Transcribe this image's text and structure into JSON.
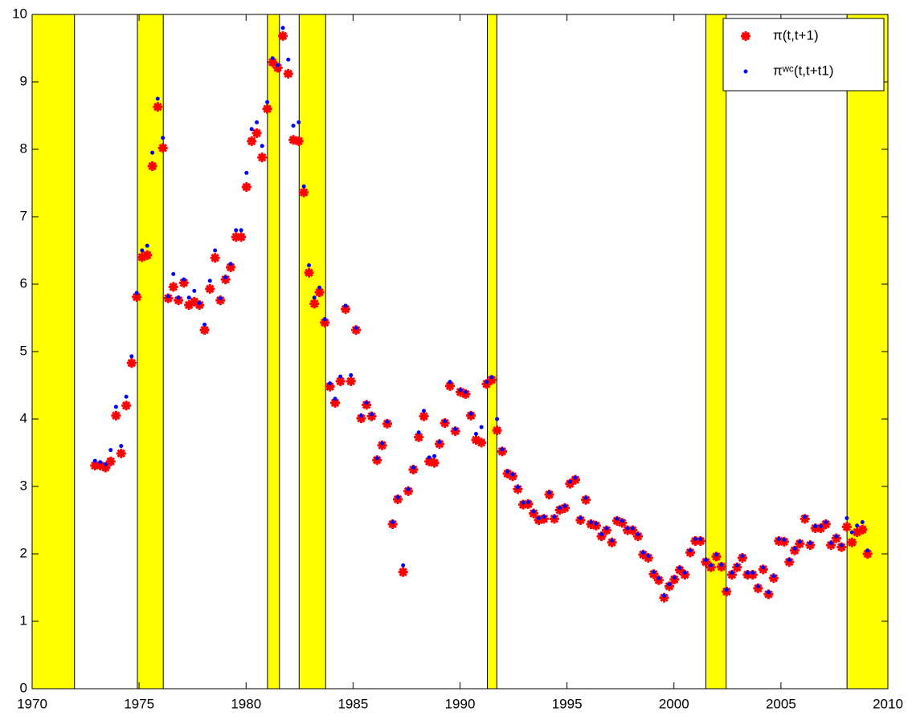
{
  "chart_data": {
    "type": "scatter",
    "xlim": [
      1970,
      2010
    ],
    "ylim": [
      0,
      10
    ],
    "xticks": [
      1970,
      1975,
      1980,
      1985,
      1990,
      1995,
      2000,
      2005,
      2010
    ],
    "yticks": [
      0,
      1,
      2,
      3,
      4,
      5,
      6,
      7,
      8,
      9,
      10
    ],
    "grid": false,
    "legend": "top-right",
    "shaded_color": "#ffff00",
    "shaded_regions": [
      [
        1970,
        1971.98
      ],
      [
        1974.92,
        1976.13
      ],
      [
        1981.0,
        1981.56
      ],
      [
        1982.48,
        1983.72
      ],
      [
        1991.28,
        1991.72
      ],
      [
        2001.49,
        2002.44
      ],
      [
        2008.09,
        2010
      ]
    ],
    "x": [
      1972.94,
      1973.18,
      1973.43,
      1973.67,
      1973.92,
      1974.16,
      1974.4,
      1974.65,
      1974.89,
      1975.14,
      1975.38,
      1975.62,
      1975.87,
      1976.11,
      1976.36,
      1976.6,
      1976.84,
      1977.09,
      1977.33,
      1977.58,
      1977.82,
      1978.06,
      1978.31,
      1978.55,
      1978.8,
      1979.04,
      1979.28,
      1979.53,
      1979.77,
      1980.02,
      1980.26,
      1980.5,
      1980.75,
      1980.99,
      1981.24,
      1981.48,
      1981.72,
      1981.97,
      1982.21,
      1982.46,
      1982.7,
      1982.94,
      1983.19,
      1983.43,
      1983.68,
      1983.92,
      1984.16,
      1984.41,
      1984.65,
      1984.9,
      1985.14,
      1985.38,
      1985.63,
      1985.87,
      1986.12,
      1986.36,
      1986.6,
      1986.85,
      1987.09,
      1987.34,
      1987.58,
      1987.82,
      1988.07,
      1988.31,
      1988.56,
      1988.8,
      1989.04,
      1989.29,
      1989.53,
      1989.78,
      1990.02,
      1990.26,
      1990.51,
      1990.75,
      1991.0,
      1991.24,
      1991.48,
      1991.73,
      1991.97,
      1992.22,
      1992.46,
      1992.7,
      1992.95,
      1993.19,
      1993.44,
      1993.68,
      1993.92,
      1994.17,
      1994.41,
      1994.66,
      1994.9,
      1995.14,
      1995.39,
      1995.63,
      1995.88,
      1996.12,
      1996.36,
      1996.61,
      1996.85,
      1997.1,
      1997.34,
      1997.58,
      1997.83,
      1998.07,
      1998.32,
      1998.56,
      1998.8,
      1999.05,
      1999.29,
      1999.54,
      1999.78,
      2000.02,
      2000.27,
      2000.51,
      2000.76,
      2001.0,
      2001.24,
      2001.49,
      2001.73,
      2001.98,
      2002.22,
      2002.46,
      2002.71,
      2002.95,
      2003.2,
      2003.44,
      2003.68,
      2003.93,
      2004.17,
      2004.42,
      2004.66,
      2004.9,
      2005.15,
      2005.39,
      2005.64,
      2005.88,
      2006.12,
      2006.37,
      2006.61,
      2006.86,
      2007.1,
      2007.34,
      2007.59,
      2007.83,
      2008.08,
      2008.32,
      2008.56,
      2008.81,
      2009.05
    ],
    "series": [
      {
        "name": "π(t,t+1)",
        "color": "#ff0000",
        "marker": "asterisk",
        "values": [
          3.31,
          3.31,
          3.28,
          3.37,
          4.05,
          3.49,
          4.2,
          4.83,
          5.81,
          6.4,
          6.43,
          7.75,
          8.63,
          8.02,
          5.79,
          5.96,
          5.76,
          6.02,
          5.69,
          5.74,
          5.69,
          5.32,
          5.93,
          6.39,
          5.76,
          6.07,
          6.25,
          6.7,
          6.7,
          7.44,
          8.12,
          8.24,
          7.88,
          8.6,
          9.29,
          9.21,
          9.68,
          9.12,
          8.14,
          8.12,
          7.36,
          6.17,
          5.71,
          5.88,
          5.43,
          4.48,
          4.24,
          4.56,
          5.63,
          4.56,
          5.32,
          4.01,
          4.21,
          4.04,
          3.39,
          3.61,
          3.93,
          2.44,
          2.81,
          1.73,
          2.93,
          3.25,
          3.73,
          4.04,
          3.37,
          3.35,
          3.63,
          3.94,
          4.49,
          3.82,
          4.4,
          4.37,
          4.05,
          3.69,
          3.65,
          4.52,
          4.58,
          3.83,
          3.52,
          3.19,
          3.15,
          2.96,
          2.73,
          2.74,
          2.6,
          2.5,
          2.52,
          2.88,
          2.52,
          2.65,
          2.68,
          3.04,
          3.1,
          2.5,
          2.8,
          2.44,
          2.42,
          2.26,
          2.35,
          2.17,
          2.49,
          2.46,
          2.35,
          2.35,
          2.26,
          1.99,
          1.94,
          1.7,
          1.61,
          1.35,
          1.52,
          1.62,
          1.76,
          1.69,
          2.02,
          2.19,
          2.19,
          1.88,
          1.8,
          1.96,
          1.81,
          1.44,
          1.69,
          1.8,
          1.94,
          1.69,
          1.69,
          1.49,
          1.77,
          1.4,
          1.64,
          2.19,
          2.18,
          1.88,
          2.05,
          2.15,
          2.52,
          2.13,
          2.38,
          2.38,
          2.44,
          2.13,
          2.23,
          2.1,
          2.4,
          2.17,
          2.32,
          2.36,
          2.0
        ]
      },
      {
        "name": "πʷᶜ(t,t+t1)",
        "color": "#0000ff",
        "marker": "dot",
        "values": [
          3.38,
          3.36,
          3.33,
          3.54,
          4.18,
          3.6,
          4.33,
          4.93,
          5.87,
          6.5,
          6.57,
          7.95,
          8.75,
          8.17,
          5.82,
          6.15,
          5.8,
          6.07,
          5.8,
          5.9,
          5.72,
          5.4,
          6.05,
          6.5,
          5.79,
          6.1,
          6.3,
          6.8,
          6.8,
          7.65,
          8.3,
          8.4,
          8.05,
          8.7,
          9.35,
          9.25,
          9.8,
          9.33,
          8.35,
          8.4,
          7.45,
          6.28,
          5.8,
          5.95,
          5.48,
          4.53,
          4.3,
          4.63,
          5.68,
          4.65,
          5.35,
          4.05,
          4.24,
          4.07,
          3.42,
          3.64,
          3.96,
          2.47,
          2.84,
          1.83,
          2.96,
          3.28,
          3.8,
          4.12,
          3.43,
          3.45,
          3.66,
          3.97,
          4.55,
          3.85,
          4.43,
          4.4,
          4.08,
          3.78,
          3.88,
          4.55,
          4.62,
          4.0,
          3.55,
          3.22,
          3.18,
          2.99,
          2.76,
          2.77,
          2.63,
          2.53,
          2.55,
          2.91,
          2.55,
          2.68,
          2.71,
          3.07,
          3.13,
          2.53,
          2.83,
          2.47,
          2.45,
          2.29,
          2.38,
          2.2,
          2.52,
          2.49,
          2.38,
          2.38,
          2.29,
          2.02,
          1.97,
          1.73,
          1.64,
          1.38,
          1.55,
          1.65,
          1.79,
          1.72,
          2.05,
          2.22,
          2.22,
          1.91,
          1.83,
          1.99,
          1.84,
          1.47,
          1.72,
          1.83,
          1.97,
          1.72,
          1.72,
          1.52,
          1.8,
          1.43,
          1.67,
          2.22,
          2.21,
          1.91,
          2.08,
          2.18,
          2.55,
          2.16,
          2.41,
          2.41,
          2.47,
          2.16,
          2.26,
          2.13,
          2.53,
          2.32,
          2.42,
          2.47,
          2.05
        ]
      }
    ]
  }
}
